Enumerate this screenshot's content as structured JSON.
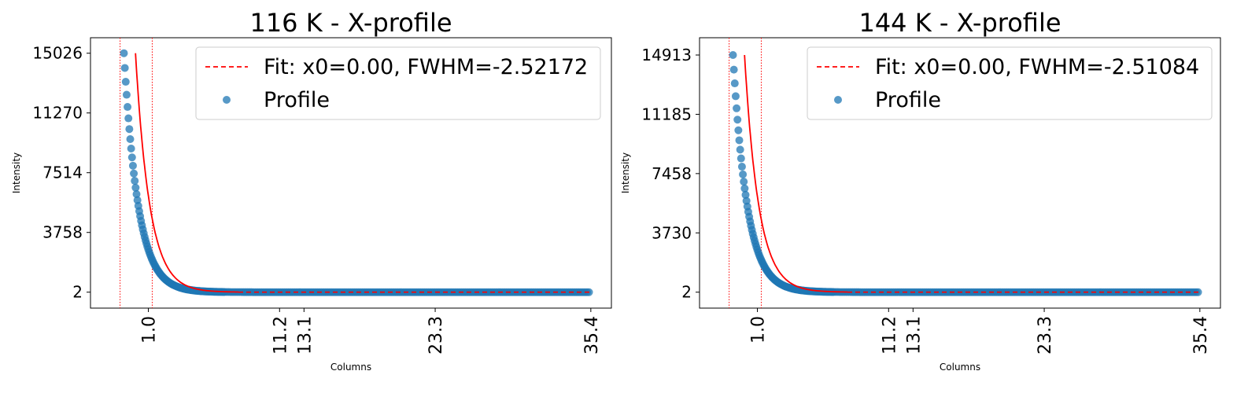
{
  "chart_data": [
    {
      "type": "scatter",
      "title": "116 K - X-profile",
      "xlabel": "Columns",
      "ylabel": "Intensity",
      "xlim": [
        -3.5,
        37.0
      ],
      "ylim": [
        -1000,
        16000
      ],
      "xticks": [
        1.0,
        11.2,
        13.1,
        23.3,
        35.4
      ],
      "xtick_labels": [
        "1.0",
        "11.2",
        "13.1",
        "23.3",
        "35.4"
      ],
      "yticks": [
        2,
        3758,
        7514,
        11270,
        15026
      ],
      "ytick_labels": [
        "2",
        "3758",
        "7514",
        "11270",
        "15026"
      ],
      "vlines": [
        -1.2,
        1.3
      ],
      "legend_position": "top-right",
      "series": [
        {
          "name": "Fit: x0=0.00, FWHM=-2.52172",
          "kind": "fit-line",
          "color": "#ff0000",
          "x": [
            0.0,
            35.4
          ],
          "peak": 15026,
          "baseline": 2,
          "decay": 1.1
        },
        {
          "name": "Profile",
          "kind": "scatter",
          "color": "#1f77b4",
          "x": [
            -0.9,
            35.4
          ],
          "peak": 15026,
          "baseline": 2,
          "decay": 1.1
        }
      ]
    },
    {
      "type": "scatter",
      "title": "144 K - X-profile",
      "xlabel": "Columns",
      "ylabel": "Intensity",
      "xlim": [
        -3.5,
        37.0
      ],
      "ylim": [
        -1000,
        16000
      ],
      "xticks": [
        1.0,
        11.2,
        13.1,
        23.3,
        35.4
      ],
      "xtick_labels": [
        "1.0",
        "11.2",
        "13.1",
        "23.3",
        "35.4"
      ],
      "yticks": [
        2,
        3730,
        7458,
        11185,
        14913
      ],
      "ytick_labels": [
        "2",
        "3730",
        "7458",
        "11185",
        "14913"
      ],
      "vlines": [
        -1.2,
        1.3
      ],
      "legend_position": "top-right",
      "series": [
        {
          "name": "Fit: x0=0.00, FWHM=-2.51084",
          "kind": "fit-line",
          "color": "#ff0000",
          "x": [
            0.0,
            35.4
          ],
          "peak": 14913,
          "baseline": 2,
          "decay": 1.1
        },
        {
          "name": "Profile",
          "kind": "scatter",
          "color": "#1f77b4",
          "x": [
            -0.9,
            35.4
          ],
          "peak": 14913,
          "baseline": 2,
          "decay": 1.1
        }
      ]
    }
  ]
}
